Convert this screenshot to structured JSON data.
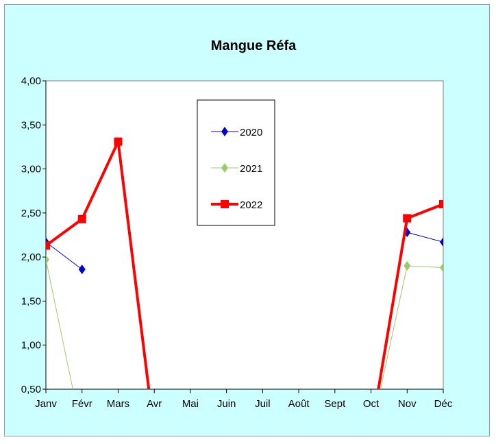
{
  "chart_data": {
    "type": "line",
    "title": "Mangue Réfa",
    "xlabel": "",
    "ylabel": "",
    "categories": [
      "Janv",
      "Févr",
      "Mars",
      "Avr",
      "Mai",
      "Juin",
      "Juil",
      "Août",
      "Sept",
      "Oct",
      "Nov",
      "Déc"
    ],
    "ylim": [
      0.5,
      4.0
    ],
    "yticks": [
      "0,50",
      "1,00",
      "1,50",
      "2,00",
      "2,50",
      "3,00",
      "3,50",
      "4,00"
    ],
    "ytick_values": [
      0.5,
      1.0,
      1.5,
      2.0,
      2.5,
      3.0,
      3.5,
      4.0
    ],
    "grid": false,
    "legend_position": "top-center",
    "series": [
      {
        "name": "2020",
        "color": "#0000cc",
        "marker": "diamond",
        "values": [
          2.17,
          1.86,
          null,
          null,
          null,
          null,
          null,
          null,
          null,
          null,
          2.28,
          2.17
        ]
      },
      {
        "name": "2021",
        "color": "#99cc66",
        "marker": "diamond",
        "values": [
          1.97,
          0.0,
          null,
          null,
          null,
          null,
          null,
          null,
          null,
          0.0,
          1.9,
          1.88
        ]
      },
      {
        "name": "2022",
        "color": "#ff0000",
        "marker": "square",
        "values": [
          2.13,
          2.43,
          3.31,
          0.0,
          null,
          null,
          null,
          null,
          null,
          0.0,
          2.44,
          2.6
        ]
      }
    ],
    "colors": {
      "chart_background": "#ccffff",
      "plot_background": "#ffffff"
    }
  }
}
